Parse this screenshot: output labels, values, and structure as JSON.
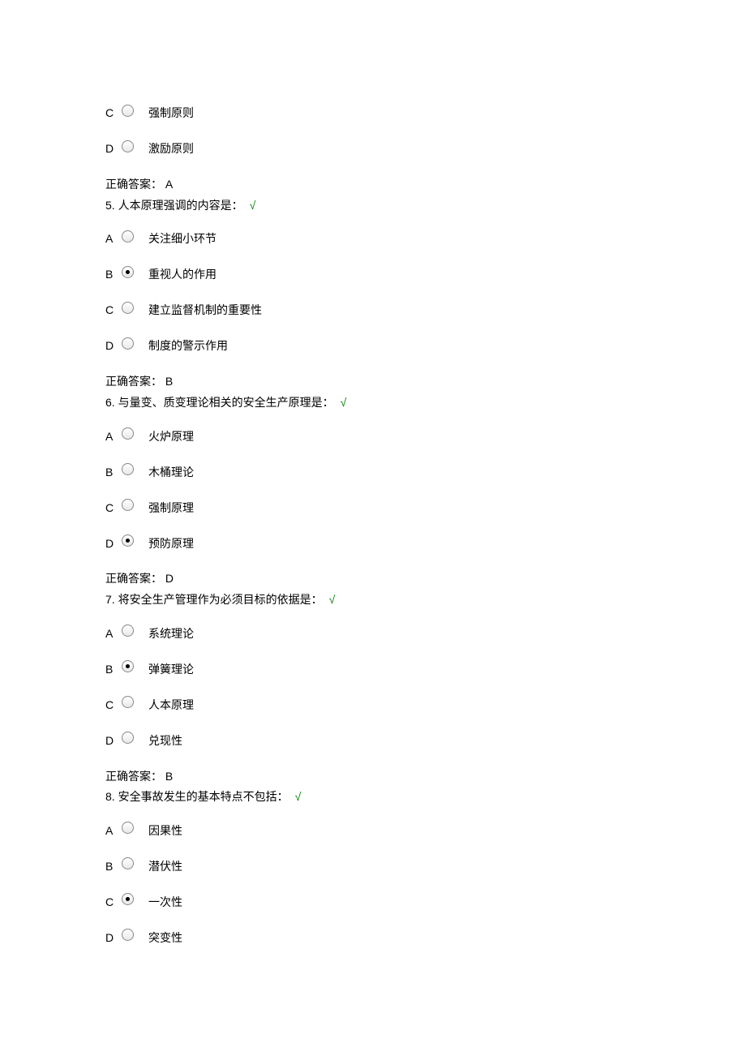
{
  "colors": {
    "text": "#000000",
    "check": "#008000",
    "bg": "#ffffff"
  },
  "font": {
    "family": "Microsoft YaHei",
    "size_pt": 10.5
  },
  "check_mark": "√",
  "labels": {
    "answer_prefix": "正确答案："
  },
  "initial_options": [
    {
      "letter": "C",
      "text": "强制原则",
      "selected": false
    },
    {
      "letter": "D",
      "text": "激励原则",
      "selected": false
    }
  ],
  "initial_answer": "A",
  "questions": [
    {
      "num": "5.",
      "text": "人本原理强调的内容是：",
      "options": [
        {
          "letter": "A",
          "text": "关注细小环节",
          "selected": false
        },
        {
          "letter": "B",
          "text": "重视人的作用",
          "selected": true
        },
        {
          "letter": "C",
          "text": "建立监督机制的重要性",
          "selected": false
        },
        {
          "letter": "D",
          "text": "制度的警示作用",
          "selected": false
        }
      ],
      "answer": "B"
    },
    {
      "num": "6.",
      "text": "与量变、质变理论相关的安全生产原理是：",
      "options": [
        {
          "letter": "A",
          "text": "火炉原理",
          "selected": false
        },
        {
          "letter": "B",
          "text": "木桶理论",
          "selected": false
        },
        {
          "letter": "C",
          "text": "强制原理",
          "selected": false
        },
        {
          "letter": "D",
          "text": "预防原理",
          "selected": true
        }
      ],
      "answer": "D"
    },
    {
      "num": "7.",
      "text": "将安全生产管理作为必须目标的依据是：",
      "options": [
        {
          "letter": "A",
          "text": "系统理论",
          "selected": false
        },
        {
          "letter": "B",
          "text": "弹簧理论",
          "selected": true
        },
        {
          "letter": "C",
          "text": "人本原理",
          "selected": false
        },
        {
          "letter": "D",
          "text": "兑现性",
          "selected": false
        }
      ],
      "answer": "B"
    },
    {
      "num": "8.",
      "text": "安全事故发生的基本特点不包括：",
      "options": [
        {
          "letter": "A",
          "text": "因果性",
          "selected": false
        },
        {
          "letter": "B",
          "text": "潜伏性",
          "selected": false
        },
        {
          "letter": "C",
          "text": "一次性",
          "selected": true
        },
        {
          "letter": "D",
          "text": "突变性",
          "selected": false
        }
      ],
      "answer": null
    }
  ]
}
